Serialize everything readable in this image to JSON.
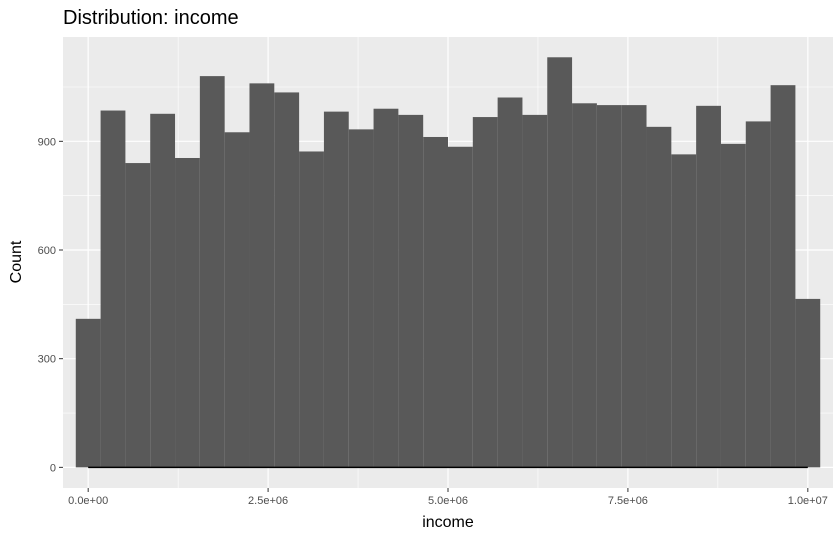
{
  "chart_data": {
    "type": "bar",
    "title": "Distribution: income",
    "xlabel": "income",
    "ylabel": "Count",
    "xlim": [
      -350000,
      10350000
    ],
    "ylim": [
      -57,
      1188
    ],
    "x_ticks": [
      {
        "value": 0,
        "label": "0.0e+00"
      },
      {
        "value": 2500000,
        "label": "2.5e+06"
      },
      {
        "value": 5000000,
        "label": "5.0e+06"
      },
      {
        "value": 7500000,
        "label": "7.5e+06"
      },
      {
        "value": 10000000,
        "label": "1.0e+07"
      }
    ],
    "y_ticks": [
      {
        "value": 0,
        "label": "0"
      },
      {
        "value": 300,
        "label": "300"
      },
      {
        "value": 600,
        "label": "600"
      },
      {
        "value": 900,
        "label": "900"
      }
    ],
    "grid": true,
    "bin_width": 344828,
    "bin_start": -172414,
    "values": [
      410,
      985,
      840,
      976,
      854,
      1080,
      925,
      1060,
      1035,
      872,
      982,
      933,
      990,
      973,
      912,
      885,
      967,
      1021,
      973,
      1132,
      1005,
      1000,
      1000,
      940,
      864,
      998,
      893,
      955,
      1055,
      465
    ],
    "bar_color": "#595959",
    "panel_color": "#ebebeb",
    "rug": {
      "from": 0,
      "to": 10000000,
      "color": "#000000"
    }
  }
}
